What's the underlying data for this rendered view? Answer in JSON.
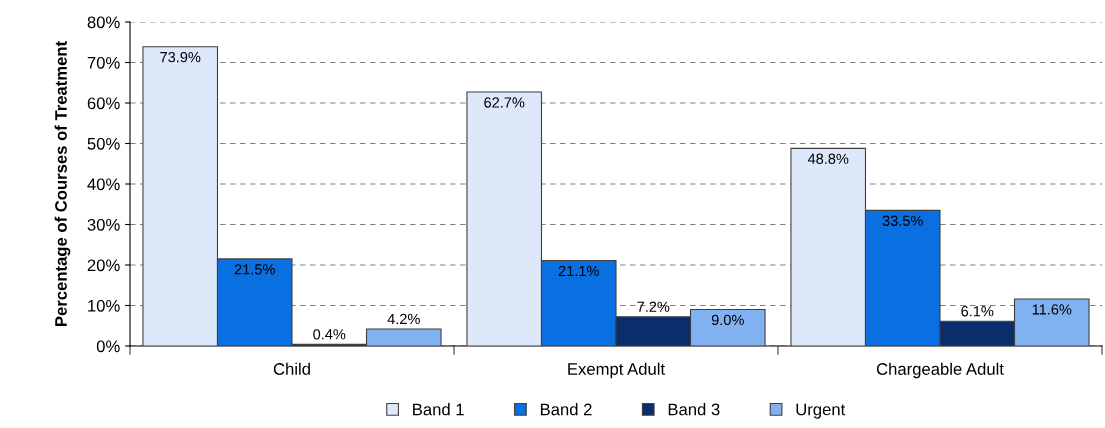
{
  "chart_data": {
    "type": "bar",
    "ylabel": "Percentage of Courses of Treatment",
    "categories": [
      "Child",
      "Exempt Adult",
      "Chargeable Adult"
    ],
    "series": [
      {
        "name": "Band 1",
        "color": "#dde9fb",
        "values": [
          73.9,
          62.7,
          48.8
        ]
      },
      {
        "name": "Band 2",
        "color": "#0a6fe0",
        "values": [
          21.5,
          21.1,
          33.5
        ]
      },
      {
        "name": "Band 3",
        "color": "#0c2d6b",
        "values": [
          0.4,
          7.2,
          6.1
        ]
      },
      {
        "name": "Urgent",
        "color": "#82b1f2",
        "values": [
          4.2,
          9.0,
          11.6
        ]
      }
    ],
    "value_labels": [
      [
        "73.9%",
        "62.7%",
        "48.8%"
      ],
      [
        "21.5%",
        "21.1%",
        "33.5%"
      ],
      [
        "0.4%",
        "7.2%",
        "6.1%"
      ],
      [
        "4.2%",
        "9.0%",
        "11.6%"
      ]
    ],
    "ylim": [
      0,
      80
    ],
    "yticks": [
      {
        "value": 0,
        "label": "0%"
      },
      {
        "value": 10,
        "label": "10%"
      },
      {
        "value": 20,
        "label": "20%"
      },
      {
        "value": 30,
        "label": "30%"
      },
      {
        "value": 40,
        "label": "40%"
      },
      {
        "value": 50,
        "label": "50%"
      },
      {
        "value": 60,
        "label": "60%"
      },
      {
        "value": 70,
        "label": "70%"
      },
      {
        "value": 80,
        "label": "80%"
      }
    ],
    "grid": "y",
    "legend": "bottom"
  }
}
